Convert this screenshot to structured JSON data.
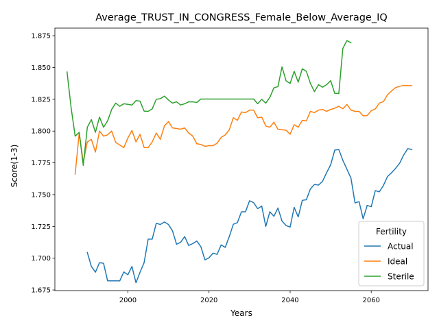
{
  "chart_data": {
    "type": "line",
    "title": "Average_TRUST_IN_CONGRESS_Female_Below_Average_IQ",
    "xlabel": "Years",
    "ylabel": "Score(1-3)",
    "xlim": [
      1982,
      2074
    ],
    "ylim": [
      1.6745,
      1.881
    ],
    "xticks": [
      2000,
      2020,
      2040,
      2060
    ],
    "yticks": [
      1.675,
      1.7,
      1.725,
      1.75,
      1.775,
      1.8,
      1.825,
      1.85,
      1.875
    ],
    "ytick_labels": [
      "1.675",
      "1.700",
      "1.725",
      "1.750",
      "1.775",
      "1.800",
      "1.825",
      "1.850",
      "1.875"
    ],
    "grid": false,
    "legend": {
      "title": "Fertility",
      "placement": "lower-right"
    },
    "series": [
      {
        "name": "Actual",
        "color": "#1f77b4",
        "x": [
          1990,
          1991,
          1992,
          1993,
          1994,
          1995,
          1996,
          1997,
          1998,
          1999,
          2000,
          2001,
          2002,
          2003,
          2004,
          2005,
          2006,
          2007,
          2008,
          2009,
          2010,
          2011,
          2012,
          2013,
          2014,
          2015,
          2016,
          2017,
          2018,
          2019,
          2020,
          2021,
          2022,
          2023,
          2024,
          2025,
          2026,
          2027,
          2028,
          2029,
          2030,
          2031,
          2032,
          2033,
          2034,
          2035,
          2036,
          2037,
          2038,
          2039,
          2040,
          2041,
          2042,
          2043,
          2044,
          2045,
          2046,
          2047,
          2048,
          2049,
          2050,
          2051,
          2052,
          2053,
          2054,
          2055,
          2056,
          2057,
          2058,
          2059,
          2060,
          2061,
          2062,
          2063,
          2064,
          2065,
          2066,
          2067,
          2068,
          2069,
          2070
        ],
        "values": [
          1.7045,
          1.6935,
          1.689,
          1.6965,
          1.696,
          1.6822,
          1.6822,
          1.6822,
          1.6822,
          1.6892,
          1.687,
          1.6935,
          1.6807,
          1.689,
          1.6965,
          1.715,
          1.715,
          1.7275,
          1.7265,
          1.7285,
          1.7265,
          1.7215,
          1.711,
          1.7125,
          1.717,
          1.71,
          1.7115,
          1.7135,
          1.709,
          1.6987,
          1.7003,
          1.704,
          1.703,
          1.7105,
          1.7085,
          1.717,
          1.7267,
          1.728,
          1.7365,
          1.7365,
          1.7452,
          1.7437,
          1.739,
          1.741,
          1.725,
          1.7365,
          1.733,
          1.7395,
          1.7292,
          1.7257,
          1.7245,
          1.74,
          1.7325,
          1.7455,
          1.746,
          1.7545,
          1.758,
          1.7575,
          1.7605,
          1.7673,
          1.7735,
          1.785,
          1.7855,
          1.777,
          1.77,
          1.763,
          1.7435,
          1.7445,
          1.731,
          1.7415,
          1.7405,
          1.7532,
          1.7522,
          1.7572,
          1.7642,
          1.7672,
          1.7707,
          1.7747,
          1.7812,
          1.7862,
          1.7855
        ]
      },
      {
        "name": "Ideal",
        "color": "#ff7f0e",
        "x": [
          1987,
          1988,
          1989,
          1990,
          1991,
          1992,
          1993,
          1994,
          1995,
          1996,
          1997,
          1998,
          1999,
          2000,
          2001,
          2002,
          2003,
          2004,
          2005,
          2006,
          2007,
          2008,
          2009,
          2010,
          2011,
          2012,
          2013,
          2014,
          2015,
          2016,
          2017,
          2018,
          2019,
          2020,
          2021,
          2022,
          2023,
          2024,
          2025,
          2026,
          2027,
          2028,
          2029,
          2030,
          2031,
          2032,
          2033,
          2034,
          2035,
          2036,
          2037,
          2038,
          2039,
          2040,
          2041,
          2042,
          2043,
          2044,
          2045,
          2046,
          2047,
          2048,
          2049,
          2050,
          2051,
          2052,
          2053,
          2054,
          2055,
          2056,
          2057,
          2058,
          2059,
          2060,
          2061,
          2062,
          2063,
          2064,
          2065,
          2066,
          2067,
          2068,
          2069,
          2070
        ],
        "values": [
          1.7662,
          1.7985,
          1.7755,
          1.7915,
          1.7935,
          1.7835,
          1.8,
          1.796,
          1.797,
          1.8,
          1.791,
          1.789,
          1.787,
          1.7945,
          1.8005,
          1.7915,
          1.7975,
          1.787,
          1.787,
          1.7915,
          1.7985,
          1.7935,
          1.804,
          1.8075,
          1.8025,
          1.802,
          1.8015,
          1.8025,
          1.7985,
          1.796,
          1.79,
          1.7895,
          1.788,
          1.7885,
          1.7885,
          1.7905,
          1.795,
          1.797,
          1.801,
          1.8105,
          1.8085,
          1.815,
          1.8145,
          1.8165,
          1.8165,
          1.8105,
          1.811,
          1.804,
          1.803,
          1.807,
          1.8015,
          1.801,
          1.8007,
          1.7975,
          1.805,
          1.803,
          1.8085,
          1.808,
          1.8155,
          1.8145,
          1.8165,
          1.817,
          1.8155,
          1.817,
          1.818,
          1.8195,
          1.8175,
          1.821,
          1.8165,
          1.8155,
          1.8155,
          1.812,
          1.8122,
          1.816,
          1.8175,
          1.822,
          1.8232,
          1.8285,
          1.8315,
          1.8342,
          1.8352,
          1.836,
          1.8358,
          1.8358
        ]
      },
      {
        "name": "Sterile",
        "color": "#2ca02c",
        "x": [
          1985,
          1986,
          1987,
          1988,
          1989,
          1990,
          1991,
          1992,
          1993,
          1994,
          1995,
          1996,
          1997,
          1998,
          1999,
          2000,
          2001,
          2002,
          2003,
          2004,
          2005,
          2006,
          2007,
          2008,
          2009,
          2010,
          2011,
          2012,
          2013,
          2014,
          2015,
          2016,
          2017,
          2018,
          2019,
          2020,
          2021,
          2022,
          2023,
          2024,
          2025,
          2026,
          2027,
          2028,
          2029,
          2030,
          2031,
          2032,
          2033,
          2034,
          2035,
          2036,
          2037,
          2038,
          2039,
          2040,
          2041,
          2042,
          2043,
          2044,
          2045,
          2046,
          2047,
          2048,
          2049,
          2050,
          2051,
          2052,
          2053,
          2054,
          2055
        ],
        "values": [
          1.8465,
          1.8185,
          1.796,
          1.799,
          1.773,
          1.803,
          1.809,
          1.799,
          1.811,
          1.803,
          1.808,
          1.817,
          1.822,
          1.8195,
          1.8215,
          1.821,
          1.8205,
          1.824,
          1.8235,
          1.8157,
          1.8155,
          1.8175,
          1.825,
          1.8255,
          1.8275,
          1.8245,
          1.822,
          1.823,
          1.8205,
          1.8215,
          1.823,
          1.823,
          1.8225,
          1.8252,
          1.8252,
          1.8252,
          1.8252,
          1.8252,
          1.8252,
          1.8252,
          1.8252,
          1.8252,
          1.8252,
          1.8252,
          1.8252,
          1.8252,
          1.8252,
          1.8215,
          1.825,
          1.822,
          1.8265,
          1.834,
          1.835,
          1.8505,
          1.8395,
          1.8375,
          1.847,
          1.8385,
          1.849,
          1.847,
          1.8375,
          1.831,
          1.8365,
          1.8345,
          1.8365,
          1.8397,
          1.8297,
          1.8295,
          1.865,
          1.8712,
          1.8695
        ]
      }
    ]
  }
}
